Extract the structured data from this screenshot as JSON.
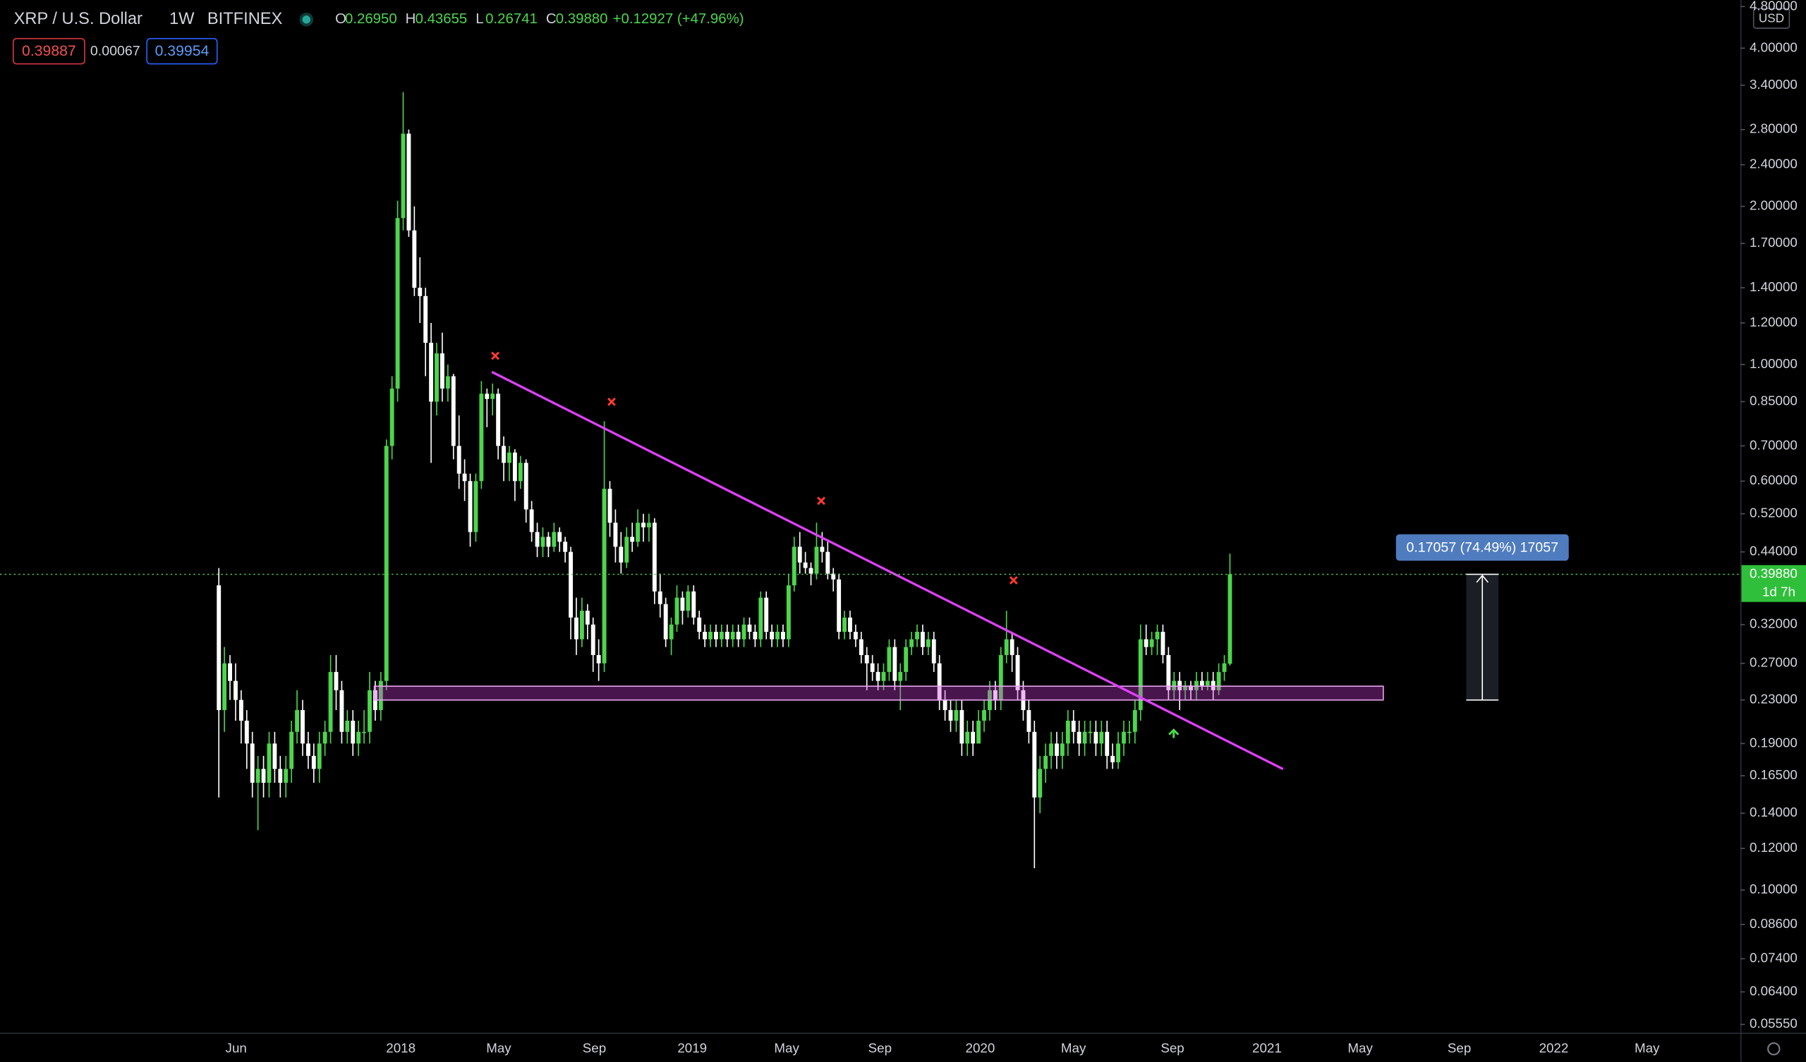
{
  "header": {
    "symbol": "XRP / U.S. Dollar",
    "interval": "1W",
    "exchange": "BITFINEX",
    "ohlc_readout": [
      {
        "label": "O",
        "value": "0.26950"
      },
      {
        "label": "H",
        "value": "0.43655"
      },
      {
        "label": "L",
        "value": "0.26741"
      },
      {
        "label": "C",
        "value": "0.39880"
      }
    ],
    "change": "+0.12927 (+47.96%)",
    "sell": "0.39887",
    "spread": "0.00067",
    "buy": "0.39954"
  },
  "chart_data": {
    "type": "candlestick",
    "log_scale": true,
    "up_color": "#4cd64c",
    "down_color": "#ffffff",
    "currency": "USD",
    "countdown": "1d 7h",
    "measure_label": "0.17057 (74.49%) 17057",
    "last_price": {
      "value": 0.3988,
      "label": "0.39880"
    },
    "ylim": [
      0.0535,
      4.94
    ],
    "yticks": [
      {
        "value": 4.8,
        "label": "4.80000"
      },
      {
        "value": 4,
        "label": "4.00000"
      },
      {
        "value": 3.4,
        "label": "3.40000"
      },
      {
        "value": 2.8,
        "label": "2.80000"
      },
      {
        "value": 2.4,
        "label": "2.40000"
      },
      {
        "value": 2,
        "label": "2.00000"
      },
      {
        "value": 1.7,
        "label": "1.70000"
      },
      {
        "value": 1.4,
        "label": "1.40000"
      },
      {
        "value": 1.2,
        "label": "1.20000"
      },
      {
        "value": 1,
        "label": "1.00000"
      },
      {
        "value": 0.85,
        "label": "0.85000"
      },
      {
        "value": 0.7,
        "label": "0.70000"
      },
      {
        "value": 0.6,
        "label": "0.60000"
      },
      {
        "value": 0.52,
        "label": "0.52000"
      },
      {
        "value": 0.44,
        "label": "0.44000"
      },
      {
        "value": 0.32,
        "label": "0.32000"
      },
      {
        "value": 0.27,
        "label": "0.27000"
      },
      {
        "value": 0.23,
        "label": "0.23000"
      },
      {
        "value": 0.19,
        "label": "0.19000"
      },
      {
        "value": 0.165,
        "label": "0.16500"
      },
      {
        "value": 0.14,
        "label": "0.14000"
      },
      {
        "value": 0.12,
        "label": "0.12000"
      },
      {
        "value": 0.1,
        "label": "0.10000"
      },
      {
        "value": 0.086,
        "label": "0.08600"
      },
      {
        "value": 0.074,
        "label": "0.07400"
      },
      {
        "value": 0.064,
        "label": "0.06400"
      },
      {
        "value": 0.0555,
        "label": "0.05550"
      }
    ],
    "x_tick_labels": [
      "Jun",
      "2018",
      "May",
      "Sep",
      "2019",
      "May",
      "Sep",
      "2020",
      "May",
      "Sep",
      "2021",
      "May",
      "Sep",
      "2022",
      "May"
    ],
    "ohlc": [
      [
        0.38,
        0.41,
        0.15,
        0.22
      ],
      [
        0.22,
        0.29,
        0.2,
        0.27
      ],
      [
        0.27,
        0.28,
        0.23,
        0.25
      ],
      [
        0.25,
        0.27,
        0.21,
        0.23
      ],
      [
        0.23,
        0.24,
        0.19,
        0.21
      ],
      [
        0.21,
        0.22,
        0.17,
        0.19
      ],
      [
        0.19,
        0.2,
        0.15,
        0.16
      ],
      [
        0.16,
        0.18,
        0.13,
        0.17
      ],
      [
        0.17,
        0.18,
        0.15,
        0.16
      ],
      [
        0.16,
        0.2,
        0.15,
        0.19
      ],
      [
        0.19,
        0.2,
        0.16,
        0.17
      ],
      [
        0.17,
        0.18,
        0.15,
        0.16
      ],
      [
        0.16,
        0.18,
        0.15,
        0.17
      ],
      [
        0.17,
        0.21,
        0.16,
        0.2
      ],
      [
        0.2,
        0.24,
        0.19,
        0.22
      ],
      [
        0.22,
        0.23,
        0.18,
        0.19
      ],
      [
        0.19,
        0.2,
        0.17,
        0.18
      ],
      [
        0.18,
        0.19,
        0.16,
        0.17
      ],
      [
        0.17,
        0.2,
        0.16,
        0.19
      ],
      [
        0.19,
        0.21,
        0.18,
        0.2
      ],
      [
        0.2,
        0.28,
        0.19,
        0.26
      ],
      [
        0.26,
        0.28,
        0.22,
        0.24
      ],
      [
        0.24,
        0.25,
        0.19,
        0.2
      ],
      [
        0.2,
        0.22,
        0.19,
        0.21
      ],
      [
        0.21,
        0.22,
        0.18,
        0.19
      ],
      [
        0.19,
        0.21,
        0.18,
        0.2
      ],
      [
        0.2,
        0.22,
        0.19,
        0.2
      ],
      [
        0.2,
        0.26,
        0.19,
        0.24
      ],
      [
        0.24,
        0.25,
        0.21,
        0.22
      ],
      [
        0.22,
        0.26,
        0.21,
        0.25
      ],
      [
        0.25,
        0.72,
        0.24,
        0.7
      ],
      [
        0.7,
        0.95,
        0.66,
        0.9
      ],
      [
        0.9,
        2.05,
        0.85,
        1.9
      ],
      [
        1.9,
        3.3,
        1.8,
        2.75
      ],
      [
        2.75,
        2.8,
        1.75,
        1.8
      ],
      [
        1.8,
        2.0,
        1.35,
        1.4
      ],
      [
        1.4,
        1.6,
        1.2,
        1.35
      ],
      [
        1.35,
        1.4,
        0.95,
        1.1
      ],
      [
        1.1,
        1.2,
        0.65,
        0.85
      ],
      [
        0.85,
        1.1,
        0.8,
        1.05
      ],
      [
        1.05,
        1.15,
        0.85,
        0.9
      ],
      [
        0.9,
        1.0,
        0.85,
        0.95
      ],
      [
        0.95,
        0.96,
        0.66,
        0.7
      ],
      [
        0.7,
        0.8,
        0.58,
        0.62
      ],
      [
        0.62,
        0.66,
        0.55,
        0.6
      ],
      [
        0.6,
        0.62,
        0.45,
        0.48
      ],
      [
        0.48,
        0.62,
        0.46,
        0.6
      ],
      [
        0.6,
        0.93,
        0.58,
        0.88
      ],
      [
        0.88,
        0.9,
        0.76,
        0.86
      ],
      [
        0.86,
        0.92,
        0.8,
        0.88
      ],
      [
        0.88,
        0.9,
        0.66,
        0.7
      ],
      [
        0.7,
        0.73,
        0.6,
        0.65
      ],
      [
        0.65,
        0.7,
        0.6,
        0.68
      ],
      [
        0.68,
        0.69,
        0.55,
        0.6
      ],
      [
        0.6,
        0.67,
        0.58,
        0.65
      ],
      [
        0.65,
        0.66,
        0.5,
        0.53
      ],
      [
        0.53,
        0.55,
        0.46,
        0.48
      ],
      [
        0.48,
        0.5,
        0.43,
        0.45
      ],
      [
        0.45,
        0.49,
        0.43,
        0.47
      ],
      [
        0.47,
        0.48,
        0.43,
        0.45
      ],
      [
        0.45,
        0.5,
        0.44,
        0.48
      ],
      [
        0.48,
        0.49,
        0.44,
        0.46
      ],
      [
        0.46,
        0.47,
        0.42,
        0.44
      ],
      [
        0.44,
        0.45,
        0.3,
        0.33
      ],
      [
        0.33,
        0.36,
        0.28,
        0.3
      ],
      [
        0.3,
        0.36,
        0.29,
        0.34
      ],
      [
        0.34,
        0.35,
        0.3,
        0.32
      ],
      [
        0.32,
        0.33,
        0.26,
        0.28
      ],
      [
        0.28,
        0.3,
        0.25,
        0.27
      ],
      [
        0.27,
        0.78,
        0.26,
        0.58
      ],
      [
        0.58,
        0.6,
        0.47,
        0.5
      ],
      [
        0.5,
        0.53,
        0.42,
        0.45
      ],
      [
        0.45,
        0.48,
        0.4,
        0.42
      ],
      [
        0.42,
        0.49,
        0.41,
        0.47
      ],
      [
        0.47,
        0.5,
        0.44,
        0.46
      ],
      [
        0.46,
        0.53,
        0.45,
        0.5
      ],
      [
        0.5,
        0.52,
        0.46,
        0.49
      ],
      [
        0.49,
        0.52,
        0.46,
        0.5
      ],
      [
        0.5,
        0.51,
        0.35,
        0.37
      ],
      [
        0.37,
        0.4,
        0.33,
        0.35
      ],
      [
        0.35,
        0.36,
        0.29,
        0.3
      ],
      [
        0.3,
        0.33,
        0.28,
        0.32
      ],
      [
        0.32,
        0.38,
        0.31,
        0.36
      ],
      [
        0.36,
        0.37,
        0.32,
        0.34
      ],
      [
        0.34,
        0.38,
        0.33,
        0.37
      ],
      [
        0.37,
        0.38,
        0.32,
        0.33
      ],
      [
        0.33,
        0.34,
        0.3,
        0.31
      ],
      [
        0.31,
        0.32,
        0.29,
        0.3
      ],
      [
        0.3,
        0.32,
        0.29,
        0.31
      ],
      [
        0.31,
        0.32,
        0.29,
        0.3
      ],
      [
        0.3,
        0.32,
        0.29,
        0.31
      ],
      [
        0.31,
        0.32,
        0.29,
        0.3
      ],
      [
        0.3,
        0.32,
        0.29,
        0.31
      ],
      [
        0.31,
        0.32,
        0.29,
        0.3
      ],
      [
        0.3,
        0.33,
        0.29,
        0.32
      ],
      [
        0.32,
        0.33,
        0.3,
        0.31
      ],
      [
        0.31,
        0.32,
        0.29,
        0.3
      ],
      [
        0.3,
        0.37,
        0.29,
        0.36
      ],
      [
        0.36,
        0.37,
        0.3,
        0.31
      ],
      [
        0.31,
        0.32,
        0.29,
        0.3
      ],
      [
        0.3,
        0.32,
        0.29,
        0.31
      ],
      [
        0.31,
        0.32,
        0.29,
        0.3
      ],
      [
        0.3,
        0.4,
        0.29,
        0.38
      ],
      [
        0.38,
        0.47,
        0.37,
        0.45
      ],
      [
        0.45,
        0.48,
        0.4,
        0.42
      ],
      [
        0.42,
        0.44,
        0.4,
        0.41
      ],
      [
        0.41,
        0.42,
        0.38,
        0.4
      ],
      [
        0.4,
        0.5,
        0.39,
        0.45
      ],
      [
        0.45,
        0.48,
        0.42,
        0.44
      ],
      [
        0.44,
        0.46,
        0.39,
        0.4
      ],
      [
        0.4,
        0.41,
        0.37,
        0.39
      ],
      [
        0.39,
        0.4,
        0.3,
        0.31
      ],
      [
        0.31,
        0.34,
        0.3,
        0.33
      ],
      [
        0.33,
        0.34,
        0.3,
        0.31
      ],
      [
        0.31,
        0.32,
        0.29,
        0.3
      ],
      [
        0.3,
        0.31,
        0.27,
        0.28
      ],
      [
        0.28,
        0.29,
        0.24,
        0.27
      ],
      [
        0.27,
        0.28,
        0.25,
        0.26
      ],
      [
        0.26,
        0.27,
        0.24,
        0.25
      ],
      [
        0.25,
        0.27,
        0.24,
        0.26
      ],
      [
        0.26,
        0.3,
        0.25,
        0.29
      ],
      [
        0.29,
        0.3,
        0.24,
        0.25
      ],
      [
        0.25,
        0.27,
        0.22,
        0.26
      ],
      [
        0.26,
        0.3,
        0.25,
        0.29
      ],
      [
        0.29,
        0.31,
        0.28,
        0.3
      ],
      [
        0.3,
        0.32,
        0.29,
        0.31
      ],
      [
        0.31,
        0.32,
        0.28,
        0.29
      ],
      [
        0.29,
        0.31,
        0.28,
        0.3
      ],
      [
        0.3,
        0.31,
        0.26,
        0.27
      ],
      [
        0.27,
        0.28,
        0.22,
        0.23
      ],
      [
        0.23,
        0.24,
        0.21,
        0.22
      ],
      [
        0.22,
        0.23,
        0.2,
        0.21
      ],
      [
        0.21,
        0.23,
        0.2,
        0.22
      ],
      [
        0.22,
        0.23,
        0.18,
        0.19
      ],
      [
        0.19,
        0.21,
        0.18,
        0.2
      ],
      [
        0.2,
        0.21,
        0.18,
        0.19
      ],
      [
        0.19,
        0.22,
        0.19,
        0.21
      ],
      [
        0.21,
        0.23,
        0.2,
        0.22
      ],
      [
        0.22,
        0.25,
        0.21,
        0.24
      ],
      [
        0.24,
        0.25,
        0.22,
        0.23
      ],
      [
        0.23,
        0.29,
        0.22,
        0.28
      ],
      [
        0.28,
        0.34,
        0.27,
        0.3
      ],
      [
        0.3,
        0.31,
        0.26,
        0.28
      ],
      [
        0.28,
        0.29,
        0.23,
        0.24
      ],
      [
        0.24,
        0.25,
        0.21,
        0.22
      ],
      [
        0.22,
        0.23,
        0.19,
        0.2
      ],
      [
        0.2,
        0.21,
        0.11,
        0.15
      ],
      [
        0.15,
        0.18,
        0.14,
        0.17
      ],
      [
        0.17,
        0.19,
        0.16,
        0.18
      ],
      [
        0.18,
        0.2,
        0.17,
        0.19
      ],
      [
        0.19,
        0.2,
        0.17,
        0.18
      ],
      [
        0.18,
        0.2,
        0.17,
        0.19
      ],
      [
        0.19,
        0.22,
        0.18,
        0.21
      ],
      [
        0.21,
        0.22,
        0.19,
        0.2
      ],
      [
        0.2,
        0.21,
        0.18,
        0.19
      ],
      [
        0.19,
        0.21,
        0.18,
        0.2
      ],
      [
        0.2,
        0.21,
        0.19,
        0.2
      ],
      [
        0.2,
        0.21,
        0.18,
        0.19
      ],
      [
        0.19,
        0.21,
        0.18,
        0.2
      ],
      [
        0.2,
        0.21,
        0.17,
        0.18
      ],
      [
        0.18,
        0.19,
        0.17,
        0.175
      ],
      [
        0.175,
        0.2,
        0.17,
        0.19
      ],
      [
        0.19,
        0.21,
        0.18,
        0.2
      ],
      [
        0.2,
        0.21,
        0.19,
        0.2
      ],
      [
        0.2,
        0.23,
        0.19,
        0.22
      ],
      [
        0.22,
        0.32,
        0.21,
        0.3
      ],
      [
        0.3,
        0.32,
        0.28,
        0.29
      ],
      [
        0.29,
        0.31,
        0.28,
        0.3
      ],
      [
        0.3,
        0.32,
        0.28,
        0.31
      ],
      [
        0.31,
        0.32,
        0.27,
        0.28
      ],
      [
        0.28,
        0.29,
        0.23,
        0.24
      ],
      [
        0.24,
        0.26,
        0.23,
        0.25
      ],
      [
        0.25,
        0.26,
        0.22,
        0.24
      ],
      [
        0.24,
        0.25,
        0.23,
        0.245
      ],
      [
        0.245,
        0.25,
        0.23,
        0.24
      ],
      [
        0.24,
        0.26,
        0.23,
        0.25
      ],
      [
        0.25,
        0.26,
        0.24,
        0.245
      ],
      [
        0.245,
        0.26,
        0.24,
        0.25
      ],
      [
        0.25,
        0.26,
        0.23,
        0.24
      ],
      [
        0.24,
        0.27,
        0.235,
        0.26
      ],
      [
        0.26,
        0.28,
        0.25,
        0.27
      ],
      [
        0.2695,
        0.43655,
        0.26741,
        0.3988
      ]
    ]
  }
}
